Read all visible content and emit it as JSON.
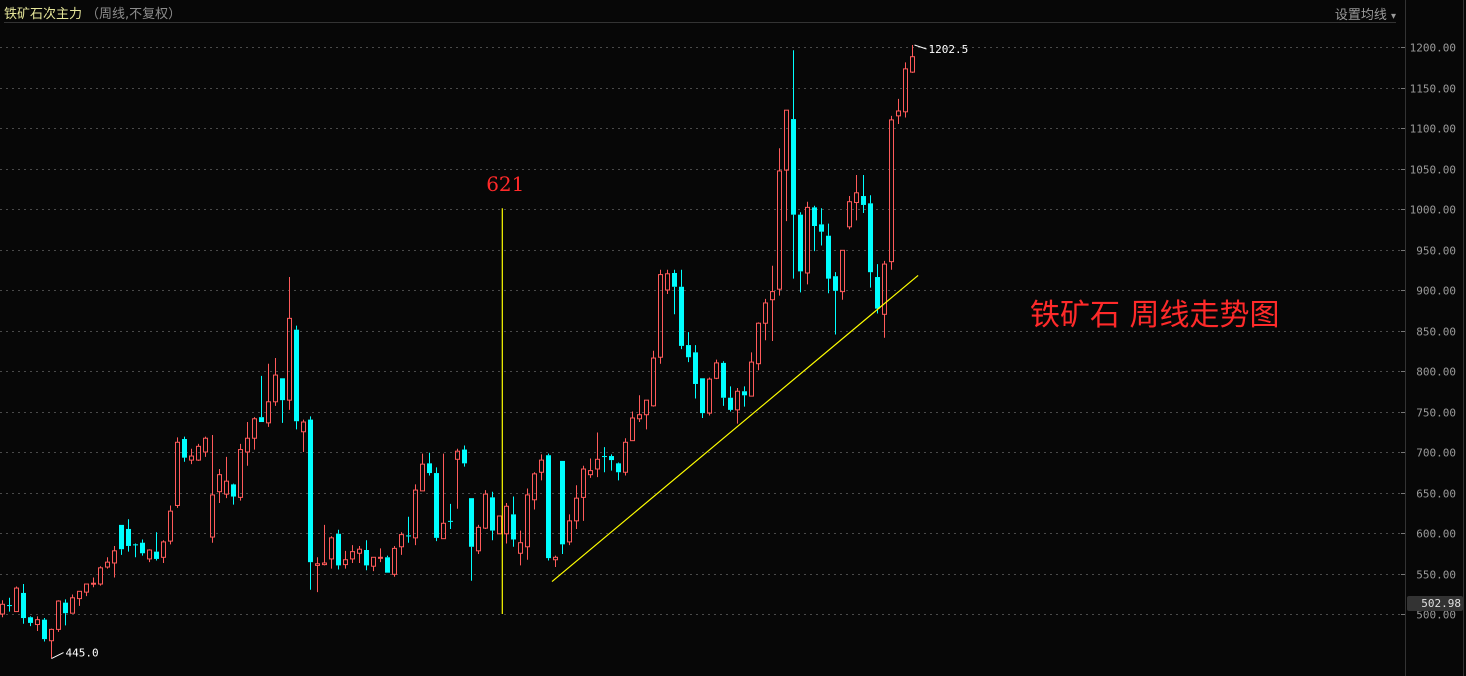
{
  "header": {
    "title": "铁矿石次主力",
    "subtitle": "（周线,不复权）",
    "ma_button": "设置均线",
    "ma_arrow": "▾"
  },
  "annotation_title": "铁矿石 周线走势图",
  "current_price": "502.98",
  "colors": {
    "up": "#ff5a5a",
    "down": "#00ffff",
    "grid": "#4a4a4a",
    "trendline": "#ffff00",
    "annotation": "#ff2a2a",
    "title": "#e6e69a"
  },
  "chart_data": {
    "type": "candlestick",
    "title": "铁矿石次主力",
    "ylim": [
      430,
      1220
    ],
    "yticks": [
      "1200.00",
      "1150.00",
      "1100.00",
      "1050.00",
      "1000.00",
      "950.00",
      "900.00",
      "850.00",
      "800.00",
      "750.00",
      "700.00",
      "650.00",
      "600.00",
      "550.00",
      "500.00"
    ],
    "grid": "horizontal dotted",
    "max_label": "1202.5",
    "min_label": "445.0",
    "vertical_marker": {
      "label": "621",
      "index": 71.4,
      "top_price": 1001
    },
    "trendline": {
      "from": {
        "index": 78.5,
        "price": 540
      },
      "to": {
        "index": 130.8,
        "price": 918
      }
    },
    "ohlc": [
      [
        500,
        517,
        496,
        512
      ],
      [
        511,
        520,
        503,
        510
      ],
      [
        503,
        534,
        503,
        532
      ],
      [
        526,
        537,
        488,
        495
      ],
      [
        496,
        497,
        485,
        489
      ],
      [
        487,
        497,
        479,
        493
      ],
      [
        493,
        495,
        466,
        469
      ],
      [
        467,
        482,
        445,
        481
      ],
      [
        481,
        517,
        478,
        516
      ],
      [
        514,
        518,
        486,
        501
      ],
      [
        501,
        524,
        501,
        520
      ],
      [
        519,
        528,
        510,
        528
      ],
      [
        527,
        537,
        522,
        537
      ],
      [
        537,
        545,
        533,
        538
      ],
      [
        537,
        559,
        535,
        557
      ],
      [
        558,
        570,
        556,
        564
      ],
      [
        563,
        584,
        545,
        578
      ],
      [
        610,
        610,
        573,
        580
      ],
      [
        605,
        617,
        577,
        584
      ],
      [
        586,
        587,
        570,
        585
      ],
      [
        588,
        592,
        572,
        575
      ],
      [
        568,
        580,
        564,
        579
      ],
      [
        577,
        601,
        566,
        568
      ],
      [
        570,
        591,
        563,
        589
      ],
      [
        590,
        634,
        586,
        627
      ],
      [
        634,
        718,
        631,
        712
      ],
      [
        716,
        719,
        688,
        693
      ],
      [
        690,
        704,
        685,
        695
      ],
      [
        690,
        710,
        689,
        707
      ],
      [
        700,
        719,
        694,
        717
      ],
      [
        595,
        721,
        588,
        647
      ],
      [
        651,
        679,
        637,
        672
      ],
      [
        648,
        694,
        643,
        664
      ],
      [
        660,
        661,
        635,
        645
      ],
      [
        644,
        710,
        640,
        703
      ],
      [
        700,
        737,
        683,
        717
      ],
      [
        717,
        743,
        703,
        741
      ],
      [
        743,
        794,
        737,
        737
      ],
      [
        736,
        809,
        731,
        762
      ],
      [
        762,
        816,
        757,
        795
      ],
      [
        791,
        791,
        736,
        764
      ],
      [
        764,
        916,
        752,
        865
      ],
      [
        851,
        856,
        728,
        738
      ],
      [
        725,
        740,
        700,
        737
      ],
      [
        740,
        744,
        530,
        564
      ],
      [
        560,
        570,
        527,
        562
      ],
      [
        561,
        610,
        560,
        563
      ],
      [
        568,
        596,
        556,
        594
      ],
      [
        599,
        604,
        555,
        560
      ],
      [
        561,
        578,
        556,
        567
      ],
      [
        568,
        585,
        563,
        577
      ],
      [
        575,
        584,
        563,
        580
      ],
      [
        579,
        591,
        554,
        560
      ],
      [
        559,
        570,
        553,
        570
      ],
      [
        570,
        581,
        564,
        570
      ],
      [
        570,
        572,
        551,
        551
      ],
      [
        549,
        584,
        546,
        581
      ],
      [
        583,
        601,
        573,
        598
      ],
      [
        597,
        620,
        588,
        596
      ],
      [
        594,
        660,
        585,
        653
      ],
      [
        652,
        698,
        652,
        685
      ],
      [
        686,
        699,
        671,
        674
      ],
      [
        674,
        681,
        590,
        594
      ],
      [
        593,
        698,
        593,
        612
      ],
      [
        615,
        636,
        605,
        614
      ],
      [
        691,
        704,
        630,
        701
      ],
      [
        703,
        708,
        682,
        686
      ],
      [
        643,
        643,
        541,
        583
      ],
      [
        578,
        610,
        574,
        607
      ],
      [
        606,
        653,
        605,
        648
      ],
      [
        644,
        651,
        591,
        603
      ],
      [
        599,
        621,
        599,
        621
      ],
      [
        599,
        637,
        587,
        633
      ],
      [
        623,
        645,
        583,
        592
      ],
      [
        575,
        603,
        560,
        588
      ],
      [
        583,
        655,
        567,
        647
      ],
      [
        641,
        675,
        629,
        673
      ],
      [
        675,
        697,
        665,
        690
      ],
      [
        696,
        698,
        566,
        569
      ],
      [
        567,
        572,
        558,
        570
      ],
      [
        689,
        689,
        574,
        586
      ],
      [
        589,
        623,
        585,
        615
      ],
      [
        615,
        659,
        605,
        643
      ],
      [
        644,
        683,
        615,
        679
      ],
      [
        672,
        692,
        668,
        677
      ],
      [
        679,
        724,
        669,
        691
      ],
      [
        695,
        706,
        675,
        694
      ],
      [
        695,
        697,
        677,
        690
      ],
      [
        686,
        687,
        665,
        675
      ],
      [
        675,
        717,
        671,
        712
      ],
      [
        714,
        750,
        714,
        742
      ],
      [
        741,
        770,
        737,
        746
      ],
      [
        746,
        764,
        728,
        764
      ],
      [
        757,
        825,
        756,
        816
      ],
      [
        817,
        925,
        809,
        919
      ],
      [
        900,
        925,
        895,
        920
      ],
      [
        921,
        925,
        870,
        904
      ],
      [
        904,
        925,
        827,
        831
      ],
      [
        832,
        848,
        811,
        817
      ],
      [
        823,
        832,
        766,
        784
      ],
      [
        791,
        791,
        742,
        748
      ],
      [
        748,
        792,
        745,
        790
      ],
      [
        791,
        814,
        790,
        810
      ],
      [
        810,
        812,
        757,
        767
      ],
      [
        767,
        781,
        750,
        752
      ],
      [
        752,
        779,
        735,
        775
      ],
      [
        775,
        781,
        756,
        770
      ],
      [
        769,
        823,
        769,
        811
      ],
      [
        809,
        860,
        801,
        859
      ],
      [
        859,
        889,
        838,
        884
      ],
      [
        888,
        930,
        837,
        898
      ],
      [
        901,
        1075,
        893,
        1047
      ],
      [
        1048,
        1122,
        985,
        1122
      ],
      [
        1111,
        1196,
        914,
        993
      ],
      [
        993,
        996,
        897,
        923
      ],
      [
        921,
        1009,
        907,
        1002
      ],
      [
        1002,
        1004,
        948,
        979
      ],
      [
        981,
        1001,
        955,
        972
      ],
      [
        967,
        982,
        896,
        914
      ],
      [
        917,
        922,
        845,
        899
      ],
      [
        898,
        949,
        888,
        949
      ],
      [
        978,
        1016,
        975,
        1009
      ],
      [
        1008,
        1042,
        986,
        1020
      ],
      [
        1016,
        1042,
        995,
        1005
      ],
      [
        1007,
        1017,
        903,
        922
      ],
      [
        916,
        932,
        871,
        877
      ],
      [
        870,
        936,
        841,
        932
      ],
      [
        935,
        1115,
        925,
        1110
      ],
      [
        1115,
        1136,
        1105,
        1121
      ],
      [
        1120,
        1181,
        1113,
        1173
      ],
      [
        1169,
        1202.5,
        1168,
        1188
      ]
    ]
  }
}
